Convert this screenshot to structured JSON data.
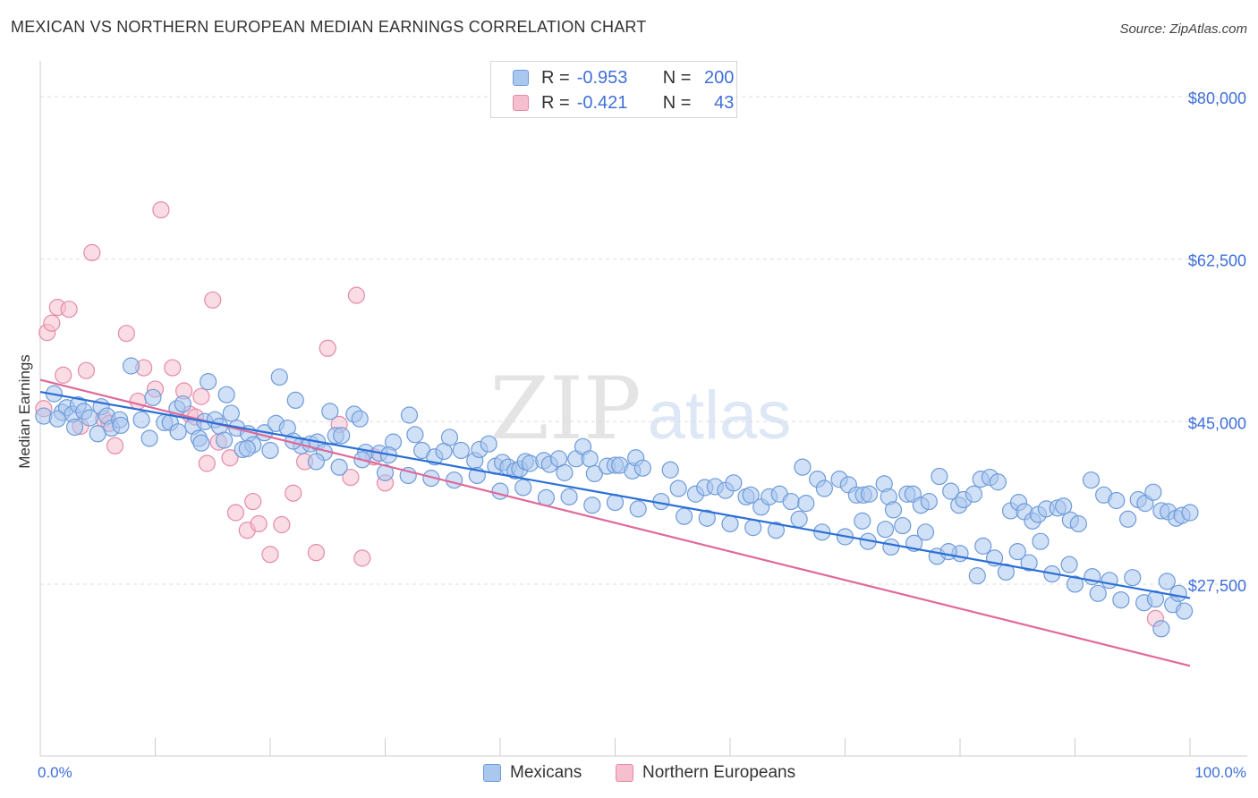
{
  "title": "MEXICAN VS NORTHERN EUROPEAN MEDIAN EARNINGS CORRELATION CHART",
  "source": "Source: ZipAtlas.com",
  "watermark": {
    "zip": "ZIP",
    "atlas": "atlas"
  },
  "legend": {
    "rows": [
      {
        "r_label": "R =",
        "r_value": "-0.953",
        "n_label": "N =",
        "n_value": "200"
      },
      {
        "r_label": "R =",
        "r_value": "-0.421",
        "n_label": "N =",
        "n_value": "43"
      }
    ]
  },
  "bottom_legend": [
    {
      "label": "Mexicans"
    },
    {
      "label": "Northern Europeans"
    }
  ],
  "colors": {
    "blue_fill": "#a9c7ef",
    "blue_stroke": "#6e9bd9",
    "blue_line": "#2b6fd6",
    "pink_fill": "#f6bfd0",
    "pink_stroke": "#e58aa8",
    "pink_line": "#e0699a",
    "axis_label": "#3f6fd8",
    "grid": "#dddddd"
  },
  "chart_data": {
    "type": "scatter",
    "title": "MEXICAN VS NORTHERN EUROPEAN MEDIAN EARNINGS CORRELATION CHART",
    "xlabel": "",
    "ylabel": "Median Earnings",
    "xlim": [
      0,
      100
    ],
    "ylim": [
      9000,
      82500
    ],
    "x_tick_labels": [
      "0.0%",
      "100.0%"
    ],
    "y_ticks": [
      {
        "value": 80000,
        "label": "$80,000"
      },
      {
        "value": 62500,
        "label": "$62,500"
      },
      {
        "value": 45000,
        "label": "$45,000"
      },
      {
        "value": 27500,
        "label": "$27,500"
      }
    ],
    "grid": "horizontal dashed",
    "series": [
      {
        "name": "Mexicans",
        "r": -0.953,
        "n": 200,
        "trend": {
          "x": [
            0,
            100
          ],
          "y": [
            48200,
            26000
          ]
        },
        "points": [
          [
            0.3,
            45600
          ],
          [
            1.2,
            48000
          ],
          [
            1.9,
            46000
          ],
          [
            2.3,
            46500
          ],
          [
            2.8,
            45800
          ],
          [
            3.3,
            46800
          ],
          [
            3.8,
            46100
          ],
          [
            4.3,
            45400
          ],
          [
            5.3,
            46600
          ],
          [
            5.8,
            45600
          ],
          [
            6.2,
            44300
          ],
          [
            6.9,
            45200
          ],
          [
            7.9,
            51000
          ],
          [
            8.8,
            45200
          ],
          [
            9.8,
            47600
          ],
          [
            10.8,
            44900
          ],
          [
            11.3,
            44900
          ],
          [
            11.9,
            46400
          ],
          [
            12.4,
            46900
          ],
          [
            13.3,
            44500
          ],
          [
            13.8,
            43200
          ],
          [
            14.3,
            45000
          ],
          [
            14.6,
            49300
          ],
          [
            15.2,
            45200
          ],
          [
            15.6,
            44500
          ],
          [
            16.2,
            47900
          ],
          [
            16.6,
            45900
          ],
          [
            17.1,
            44300
          ],
          [
            17.6,
            42000
          ],
          [
            18.1,
            43700
          ],
          [
            18.5,
            42500
          ],
          [
            19.5,
            43800
          ],
          [
            20.5,
            44800
          ],
          [
            20.8,
            49800
          ],
          [
            21.5,
            44300
          ],
          [
            22.7,
            42400
          ],
          [
            22.2,
            47300
          ],
          [
            23.5,
            42600
          ],
          [
            24.1,
            42800
          ],
          [
            24.7,
            41700
          ],
          [
            25.2,
            46100
          ],
          [
            25.7,
            43500
          ],
          [
            26.2,
            43500
          ],
          [
            27.3,
            45800
          ],
          [
            27.8,
            45300
          ],
          [
            28.3,
            41700
          ],
          [
            29.5,
            41600
          ],
          [
            30.7,
            42800
          ],
          [
            30.3,
            41400
          ],
          [
            32.1,
            45700
          ],
          [
            32.6,
            43600
          ],
          [
            33.2,
            41900
          ],
          [
            34.3,
            41200
          ],
          [
            35.1,
            41800
          ],
          [
            35.6,
            43300
          ],
          [
            36.6,
            41900
          ],
          [
            37.8,
            40800
          ],
          [
            38.2,
            42000
          ],
          [
            39.0,
            42600
          ],
          [
            39.6,
            40200
          ],
          [
            40.2,
            40600
          ],
          [
            40.7,
            40100
          ],
          [
            41.3,
            39700
          ],
          [
            41.7,
            39900
          ],
          [
            42.2,
            40700
          ],
          [
            42.6,
            40500
          ],
          [
            43.8,
            40800
          ],
          [
            44.3,
            40400
          ],
          [
            45.1,
            41000
          ],
          [
            45.6,
            39500
          ],
          [
            46.6,
            41000
          ],
          [
            47.2,
            42300
          ],
          [
            47.8,
            41000
          ],
          [
            48.2,
            39400
          ],
          [
            49.3,
            40200
          ],
          [
            50.0,
            40300
          ],
          [
            50.4,
            40300
          ],
          [
            51.5,
            39700
          ],
          [
            51.8,
            41100
          ],
          [
            52.4,
            40000
          ],
          [
            54.8,
            39800
          ],
          [
            55.5,
            37800
          ],
          [
            57.0,
            37200
          ],
          [
            57.8,
            37900
          ],
          [
            58.7,
            38000
          ],
          [
            59.6,
            37600
          ],
          [
            60.3,
            38400
          ],
          [
            61.4,
            36900
          ],
          [
            61.8,
            37100
          ],
          [
            62.7,
            35800
          ],
          [
            63.4,
            36900
          ],
          [
            64.3,
            37200
          ],
          [
            65.3,
            36400
          ],
          [
            66.3,
            40100
          ],
          [
            66.6,
            36200
          ],
          [
            67.6,
            38800
          ],
          [
            68.2,
            37800
          ],
          [
            69.5,
            38800
          ],
          [
            70.3,
            38200
          ],
          [
            71.0,
            37100
          ],
          [
            71.6,
            37100
          ],
          [
            72.1,
            37200
          ],
          [
            73.4,
            38300
          ],
          [
            73.8,
            36900
          ],
          [
            74.2,
            35500
          ],
          [
            75.4,
            37200
          ],
          [
            75.9,
            37200
          ],
          [
            76.6,
            36000
          ],
          [
            77.3,
            36400
          ],
          [
            78.2,
            39100
          ],
          [
            79.2,
            37500
          ],
          [
            79.9,
            36000
          ],
          [
            80.3,
            36600
          ],
          [
            81.2,
            37200
          ],
          [
            81.8,
            38800
          ],
          [
            82.6,
            39000
          ],
          [
            83.3,
            38500
          ],
          [
            84.4,
            35400
          ],
          [
            85.1,
            36300
          ],
          [
            85.6,
            35300
          ],
          [
            86.3,
            34300
          ],
          [
            86.8,
            35000
          ],
          [
            87.5,
            35600
          ],
          [
            88.5,
            35700
          ],
          [
            89.0,
            35900
          ],
          [
            89.6,
            34400
          ],
          [
            90.3,
            34000
          ],
          [
            91.4,
            38700
          ],
          [
            92.5,
            37100
          ],
          [
            93.6,
            36500
          ],
          [
            94.6,
            34500
          ],
          [
            95.5,
            36600
          ],
          [
            96.1,
            36200
          ],
          [
            96.8,
            37400
          ],
          [
            97.5,
            35400
          ],
          [
            98.1,
            35300
          ],
          [
            98.8,
            34600
          ],
          [
            99.3,
            34900
          ],
          [
            100.0,
            35200
          ],
          [
            1.5,
            45300
          ],
          [
            3.0,
            44400
          ],
          [
            5.0,
            43700
          ],
          [
            7.0,
            44600
          ],
          [
            9.5,
            43200
          ],
          [
            12.0,
            43900
          ],
          [
            14.0,
            42700
          ],
          [
            16.0,
            43000
          ],
          [
            18.0,
            42100
          ],
          [
            20.0,
            41900
          ],
          [
            22.0,
            42900
          ],
          [
            24.0,
            40700
          ],
          [
            26.0,
            40100
          ],
          [
            28.0,
            40900
          ],
          [
            30.0,
            39500
          ],
          [
            32.0,
            39200
          ],
          [
            34.0,
            38900
          ],
          [
            36.0,
            38700
          ],
          [
            38.0,
            39200
          ],
          [
            40.0,
            37500
          ],
          [
            42.0,
            37900
          ],
          [
            44.0,
            36800
          ],
          [
            46.0,
            36900
          ],
          [
            48.0,
            36000
          ],
          [
            50.0,
            36300
          ],
          [
            52.0,
            35600
          ],
          [
            54.0,
            36400
          ],
          [
            56.0,
            34800
          ],
          [
            58.0,
            34600
          ],
          [
            60.0,
            34000
          ],
          [
            62.0,
            33600
          ],
          [
            64.0,
            33300
          ],
          [
            66.0,
            34500
          ],
          [
            68.0,
            33100
          ],
          [
            70.0,
            32600
          ],
          [
            72.0,
            32100
          ],
          [
            74.0,
            31500
          ],
          [
            76.0,
            31900
          ],
          [
            78.0,
            30500
          ],
          [
            80.0,
            30800
          ],
          [
            82.0,
            31600
          ],
          [
            84.0,
            28800
          ],
          [
            86.0,
            29800
          ],
          [
            88.0,
            28600
          ],
          [
            90.0,
            27500
          ],
          [
            92.0,
            26500
          ],
          [
            94.0,
            25800
          ],
          [
            96.0,
            25500
          ],
          [
            97.5,
            22700
          ],
          [
            98.5,
            25300
          ],
          [
            99.5,
            24600
          ],
          [
            89.5,
            29600
          ],
          [
            91.5,
            28300
          ],
          [
            93.0,
            27900
          ],
          [
            95.0,
            28200
          ],
          [
            97.0,
            25900
          ],
          [
            98.0,
            27800
          ],
          [
            99.0,
            26500
          ],
          [
            87.0,
            32100
          ],
          [
            85.0,
            31000
          ],
          [
            83.0,
            30300
          ],
          [
            81.5,
            28400
          ],
          [
            79.0,
            31000
          ],
          [
            77.0,
            33100
          ],
          [
            75.0,
            33800
          ],
          [
            73.5,
            33400
          ],
          [
            71.5,
            34300
          ]
        ]
      },
      {
        "name": "Northern Europeans",
        "r": -0.421,
        "n": 43,
        "trend": {
          "x": [
            0,
            100
          ],
          "y": [
            49500,
            18700
          ]
        },
        "points": [
          [
            0.3,
            46400
          ],
          [
            0.6,
            54600
          ],
          [
            1.0,
            55600
          ],
          [
            1.5,
            57300
          ],
          [
            2.0,
            50000
          ],
          [
            2.5,
            57100
          ],
          [
            3.5,
            44500
          ],
          [
            4.0,
            50500
          ],
          [
            4.5,
            63200
          ],
          [
            5.5,
            45300
          ],
          [
            6.0,
            44800
          ],
          [
            6.5,
            42400
          ],
          [
            7.5,
            54500
          ],
          [
            8.5,
            47200
          ],
          [
            9.0,
            50800
          ],
          [
            10.0,
            48500
          ],
          [
            10.5,
            67800
          ],
          [
            11.5,
            50800
          ],
          [
            12.5,
            48300
          ],
          [
            13.0,
            45800
          ],
          [
            13.5,
            45500
          ],
          [
            14.0,
            47700
          ],
          [
            14.5,
            40500
          ],
          [
            15.0,
            58100
          ],
          [
            15.5,
            42800
          ],
          [
            16.5,
            41100
          ],
          [
            17.0,
            35200
          ],
          [
            18.0,
            33300
          ],
          [
            18.5,
            36400
          ],
          [
            19.0,
            34000
          ],
          [
            20.0,
            30700
          ],
          [
            21.0,
            33900
          ],
          [
            22.0,
            37300
          ],
          [
            23.0,
            40700
          ],
          [
            24.0,
            30900
          ],
          [
            25.0,
            52900
          ],
          [
            26.0,
            44700
          ],
          [
            27.0,
            39000
          ],
          [
            27.5,
            58600
          ],
          [
            28.0,
            30300
          ],
          [
            29.0,
            41200
          ],
          [
            30.0,
            38400
          ],
          [
            97.0,
            23800
          ]
        ]
      }
    ]
  }
}
